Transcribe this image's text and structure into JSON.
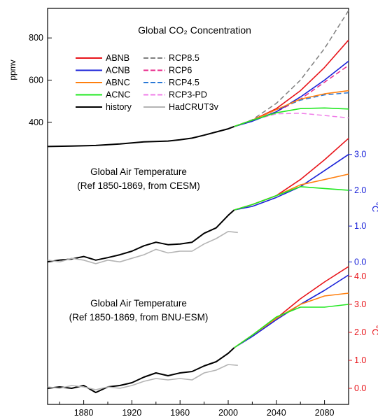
{
  "chart_data": [
    {
      "type": "line",
      "title": "Global CO₂ Concentration",
      "ylabel": "ppmv",
      "ylim": [
        250,
        940
      ],
      "yticks": [
        400,
        600,
        800
      ],
      "xlim": [
        1850,
        2100
      ],
      "legend": {
        "placement": "upper-left",
        "columns": [
          [
            {
              "name": "ABNB",
              "color": "#e8141a",
              "dash": "solid"
            },
            {
              "name": "ACNB",
              "color": "#1a22d8",
              "dash": "solid"
            },
            {
              "name": "ABNC",
              "color": "#ff7f0e",
              "dash": "solid"
            },
            {
              "name": "ACNC",
              "color": "#22e822",
              "dash": "solid"
            },
            {
              "name": "history",
              "color": "#000000",
              "dash": "solid"
            }
          ],
          [
            {
              "name": "RCP8.5",
              "color": "#808080",
              "dash": "dashed"
            },
            {
              "name": "RCP6",
              "color": "#e8278a",
              "dash": "dashed"
            },
            {
              "name": "RCP4.5",
              "color": "#2a79d6",
              "dash": "dashed"
            },
            {
              "name": "RCP3-PD",
              "color": "#f07ce8",
              "dash": "dashed"
            },
            {
              "name": "HadCRUT3v",
              "color": "#b4b4b4",
              "dash": "solid"
            }
          ]
        ]
      },
      "series": [
        {
          "name": "history",
          "color": "#000000",
          "x": [
            1850,
            1870,
            1890,
            1910,
            1930,
            1950,
            1960,
            1970,
            1980,
            1990,
            2000,
            2005
          ],
          "y": [
            285,
            287,
            290,
            297,
            307,
            311,
            317,
            325,
            339,
            354,
            369,
            380
          ]
        },
        {
          "name": "RCP8.5",
          "color": "#808080",
          "x": [
            2005,
            2020,
            2040,
            2060,
            2080,
            2100
          ],
          "y": [
            380,
            412,
            490,
            600,
            750,
            930
          ]
        },
        {
          "name": "RCP6",
          "color": "#e8278a",
          "x": [
            2005,
            2020,
            2040,
            2060,
            2080,
            2100
          ],
          "y": [
            380,
            408,
            450,
            510,
            590,
            670
          ]
        },
        {
          "name": "RCP4.5",
          "color": "#2a79d6",
          "x": [
            2005,
            2020,
            2040,
            2060,
            2080,
            2100
          ],
          "y": [
            380,
            411,
            460,
            505,
            530,
            540
          ]
        },
        {
          "name": "RCP3-PD",
          "color": "#f07ce8",
          "x": [
            2005,
            2020,
            2040,
            2060,
            2080,
            2100
          ],
          "y": [
            380,
            410,
            440,
            443,
            432,
            421
          ]
        },
        {
          "name": "ABNB",
          "color": "#e8141a",
          "x": [
            2005,
            2020,
            2040,
            2060,
            2080,
            2100
          ],
          "y": [
            380,
            410,
            465,
            550,
            660,
            790
          ]
        },
        {
          "name": "ACNB",
          "color": "#1a22d8",
          "x": [
            2005,
            2020,
            2040,
            2060,
            2080,
            2100
          ],
          "y": [
            380,
            405,
            450,
            520,
            600,
            690
          ]
        },
        {
          "name": "ABNC",
          "color": "#ff7f0e",
          "x": [
            2005,
            2020,
            2040,
            2060,
            2080,
            2100
          ],
          "y": [
            380,
            410,
            460,
            510,
            535,
            550
          ]
        },
        {
          "name": "ACNC",
          "color": "#22e822",
          "x": [
            2005,
            2020,
            2040,
            2060,
            2080,
            2100
          ],
          "y": [
            380,
            410,
            445,
            465,
            468,
            463
          ]
        }
      ]
    },
    {
      "type": "line",
      "title": "Global Air Temperature",
      "subtitle": "(Ref 1850-1869, from CESM)",
      "ylabel": "°C",
      "ylim": [
        -0.15,
        3.6
      ],
      "yticks": [
        0.0,
        1.0,
        2.0,
        3.0
      ],
      "ytick_labels": [
        "0.0",
        "1.0",
        "2.0",
        "3.0"
      ],
      "ytick_color": "#1a22d8",
      "xlim": [
        1850,
        2100
      ],
      "series": [
        {
          "name": "history",
          "color": "#000000",
          "x": [
            1850,
            1860,
            1870,
            1880,
            1890,
            1900,
            1910,
            1920,
            1930,
            1940,
            1950,
            1960,
            1970,
            1980,
            1990,
            2000,
            2005
          ],
          "y": [
            0.0,
            0.05,
            0.08,
            0.15,
            0.05,
            0.12,
            0.2,
            0.3,
            0.45,
            0.55,
            0.48,
            0.5,
            0.55,
            0.8,
            0.95,
            1.3,
            1.45
          ]
        },
        {
          "name": "HadCRUT3v",
          "color": "#b4b4b4",
          "x": [
            1850,
            1860,
            1870,
            1880,
            1890,
            1900,
            1910,
            1920,
            1930,
            1940,
            1950,
            1960,
            1970,
            1980,
            1990,
            2000,
            2008
          ],
          "y": [
            0.05,
            0.0,
            0.1,
            0.05,
            -0.05,
            0.05,
            0.0,
            0.1,
            0.2,
            0.35,
            0.25,
            0.3,
            0.3,
            0.5,
            0.65,
            0.85,
            0.82
          ]
        },
        {
          "name": "ABNB",
          "color": "#e8141a",
          "x": [
            2005,
            2020,
            2040,
            2060,
            2080,
            2100
          ],
          "y": [
            1.45,
            1.6,
            1.85,
            2.3,
            2.85,
            3.45
          ]
        },
        {
          "name": "ACNB",
          "color": "#1a22d8",
          "x": [
            2005,
            2020,
            2040,
            2060,
            2080,
            2100
          ],
          "y": [
            1.45,
            1.55,
            1.8,
            2.1,
            2.55,
            3.0
          ]
        },
        {
          "name": "ABNC",
          "color": "#ff7f0e",
          "x": [
            2005,
            2020,
            2040,
            2060,
            2080,
            2100
          ],
          "y": [
            1.45,
            1.6,
            1.85,
            2.15,
            2.3,
            2.45
          ]
        },
        {
          "name": "ACNC",
          "color": "#22e822",
          "x": [
            2005,
            2020,
            2040,
            2060,
            2080,
            2100
          ],
          "y": [
            1.45,
            1.6,
            1.85,
            2.1,
            2.05,
            2.0
          ]
        }
      ]
    },
    {
      "type": "line",
      "title": "Global Air Temperature",
      "subtitle": "(Ref 1850-1869, from BNU-ESM)",
      "ylabel": "°C",
      "ylim": [
        -0.3,
        4.5
      ],
      "yticks": [
        0.0,
        1.0,
        2.0,
        3.0,
        4.0
      ],
      "ytick_labels": [
        "0.0",
        "1.0",
        "2.0",
        "3.0",
        "4.0"
      ],
      "ytick_color": "#e8141a",
      "xlim": [
        1850,
        2100
      ],
      "xticks": [
        1880,
        1920,
        1960,
        2000,
        2040,
        2080
      ],
      "xtick_labels": [
        "1880",
        "1920",
        "1960",
        "2000",
        "2040",
        "2080"
      ],
      "series": [
        {
          "name": "history",
          "color": "#000000",
          "x": [
            1850,
            1860,
            1870,
            1880,
            1890,
            1900,
            1910,
            1920,
            1930,
            1940,
            1950,
            1960,
            1970,
            1980,
            1990,
            2000,
            2005
          ],
          "y": [
            0.0,
            0.05,
            0.0,
            0.1,
            -0.15,
            0.05,
            0.1,
            0.2,
            0.4,
            0.55,
            0.45,
            0.55,
            0.6,
            0.8,
            0.95,
            1.25,
            1.45
          ]
        },
        {
          "name": "HadCRUT3v",
          "color": "#b4b4b4",
          "x": [
            1850,
            1860,
            1870,
            1880,
            1890,
            1900,
            1910,
            1920,
            1930,
            1940,
            1950,
            1960,
            1970,
            1980,
            1990,
            2000,
            2008
          ],
          "y": [
            0.05,
            0.0,
            0.1,
            0.05,
            -0.05,
            0.05,
            0.0,
            0.1,
            0.25,
            0.35,
            0.3,
            0.35,
            0.3,
            0.55,
            0.65,
            0.85,
            0.82
          ]
        },
        {
          "name": "ABNB",
          "color": "#e8141a",
          "x": [
            2005,
            2020,
            2040,
            2060,
            2080,
            2100
          ],
          "y": [
            1.45,
            1.9,
            2.5,
            3.2,
            3.8,
            4.35
          ]
        },
        {
          "name": "ACNB",
          "color": "#1a22d8",
          "x": [
            2005,
            2020,
            2040,
            2060,
            2080,
            2100
          ],
          "y": [
            1.45,
            1.85,
            2.45,
            3.0,
            3.5,
            4.05
          ]
        },
        {
          "name": "ABNC",
          "color": "#ff7f0e",
          "x": [
            2005,
            2020,
            2040,
            2060,
            2080,
            2100
          ],
          "y": [
            1.45,
            1.9,
            2.5,
            3.0,
            3.3,
            3.4
          ]
        },
        {
          "name": "ACNC",
          "color": "#22e822",
          "x": [
            2005,
            2020,
            2040,
            2060,
            2080,
            2100
          ],
          "y": [
            1.45,
            1.9,
            2.55,
            2.9,
            2.9,
            3.0
          ]
        }
      ]
    }
  ]
}
